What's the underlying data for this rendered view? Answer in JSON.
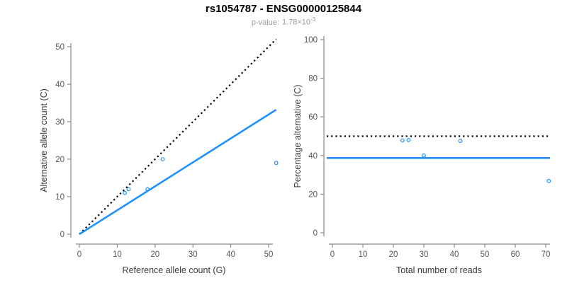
{
  "header": {
    "title": "rs1054787 - ENSG00000125844",
    "pvalue_label": "p-value:",
    "pvalue_base": "1.78×10",
    "pvalue_exponent": "-3"
  },
  "colors": {
    "accent": "#1E90FF",
    "identity_line": "#000000",
    "axis": "#8a8a8a",
    "tick_text": "#555555",
    "axis_title": "#3c3c3c",
    "title": "#000000",
    "subtitle": "#9b9b9b",
    "background": "#ffffff"
  },
  "chart_data": [
    {
      "type": "scatter",
      "name": "allele-counts",
      "xlabel": "Reference allele count (G)",
      "ylabel": "Alternative allele count (C)",
      "xticks": [
        0,
        10,
        20,
        30,
        40,
        50
      ],
      "yticks": [
        0,
        10,
        20,
        30,
        40,
        50
      ],
      "xlim": [
        0,
        52
      ],
      "ylim": [
        0,
        52
      ],
      "grid": false,
      "points": [
        [
          12,
          11
        ],
        [
          13,
          12
        ],
        [
          18,
          12
        ],
        [
          22,
          20
        ],
        [
          52,
          19
        ]
      ],
      "lines": [
        {
          "name": "identity-line",
          "style": "dotted",
          "color": "#000000",
          "from": [
            0,
            0
          ],
          "to": [
            52,
            52
          ]
        },
        {
          "name": "regression-line",
          "style": "solid",
          "color": "#1E90FF",
          "from": [
            0,
            0
          ],
          "to": [
            52,
            33.2
          ]
        }
      ]
    },
    {
      "type": "scatter",
      "name": "percentage-vs-reads",
      "xlabel": "Total number of reads",
      "ylabel": "Percentage alternative (C)",
      "xticks": [
        0,
        10,
        20,
        30,
        40,
        50,
        60,
        70
      ],
      "yticks": [
        0,
        20,
        40,
        60,
        80,
        100
      ],
      "xlim": [
        0,
        71
      ],
      "ylim": [
        0,
        100
      ],
      "grid": false,
      "points": [
        [
          23,
          47.8
        ],
        [
          25,
          48
        ],
        [
          30,
          40
        ],
        [
          42,
          47.6
        ],
        [
          71,
          26.8
        ]
      ],
      "lines": [
        {
          "name": "expected-percentage-line",
          "style": "dotted",
          "color": "#000000",
          "y": 50
        },
        {
          "name": "observed-percentage-line",
          "style": "solid",
          "color": "#1E90FF",
          "y": 38.7
        }
      ]
    }
  ]
}
